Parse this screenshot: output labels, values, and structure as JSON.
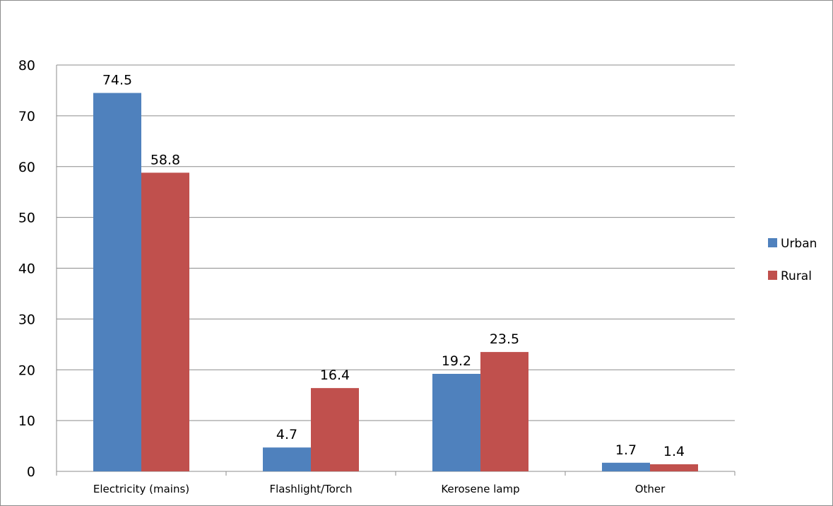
{
  "chart_data": {
    "type": "bar",
    "categories": [
      "Electricity (mains)",
      "Flashlight/Torch",
      "Kerosene lamp",
      "Other"
    ],
    "series": [
      {
        "name": "Urban",
        "values": [
          74.5,
          4.7,
          19.2,
          1.7
        ],
        "color": "#4f81bd"
      },
      {
        "name": "Rural",
        "values": [
          58.8,
          16.4,
          23.5,
          1.4
        ],
        "color": "#c0504d"
      }
    ],
    "ylim": [
      0,
      80
    ],
    "yticks": [
      0,
      10,
      20,
      30,
      40,
      50,
      60,
      70,
      80
    ],
    "grid": true,
    "legend": "right",
    "title": "",
    "xlabel": "",
    "ylabel": ""
  }
}
